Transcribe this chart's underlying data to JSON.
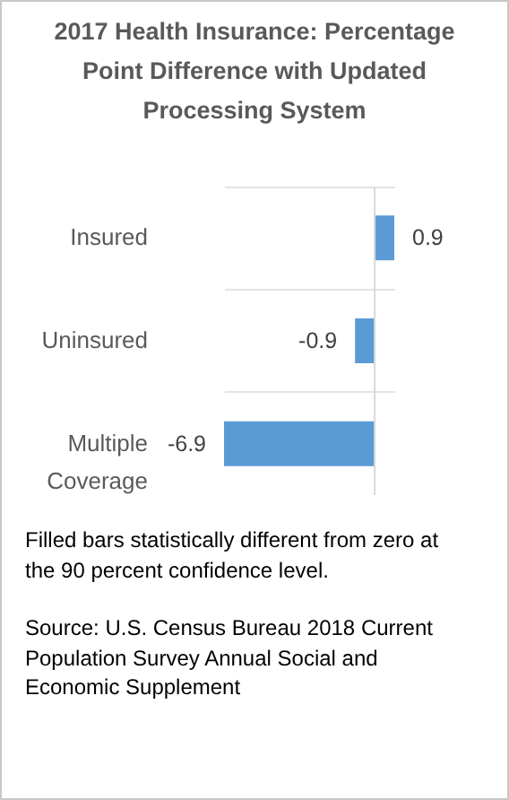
{
  "chart_data": {
    "type": "bar",
    "orientation": "horizontal",
    "title": "2017 Health Insurance: Percentage Point Difference with Updated Processing System",
    "categories": [
      "Insured",
      "Uninsured",
      "Multiple Coverage"
    ],
    "values": [
      0.9,
      -0.9,
      -6.9
    ],
    "color": "#5b9bd5",
    "data_labels": true,
    "grid": "y",
    "annotations": [
      "Filled bars statistically different from zero at the 90 percent confidence level.",
      "Source:  U.S. Census Bureau 2018 Current Population Survey Annual Social and Economic Supplement"
    ]
  }
}
